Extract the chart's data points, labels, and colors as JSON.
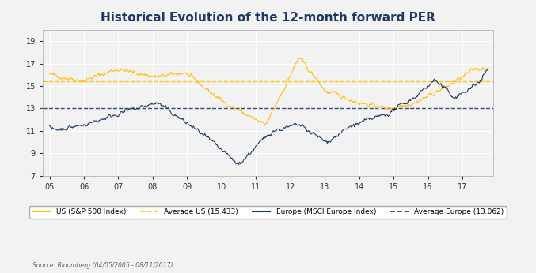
{
  "title": "Historical Evolution of the 12-month forward PER",
  "title_color": "#1F3864",
  "title_fontsize": 11,
  "us_color": "#FFC000",
  "europe_color": "#1F3864",
  "avg_us_color": "#FFC000",
  "avg_europe_color": "#1F3864",
  "avg_us_value": 15.433,
  "avg_europe_value": 13.062,
  "ylim": [
    7,
    20
  ],
  "yticks": [
    7,
    9,
    11,
    13,
    15,
    17,
    19
  ],
  "xtick_labels": [
    "05",
    "06",
    "07",
    "08",
    "09",
    "10",
    "11",
    "12",
    "13",
    "14",
    "15",
    "16",
    "17"
  ],
  "source_text": "Source: Bloomberg (04/05/2005 - 08/11/2017)",
  "legend_labels": [
    "US (S&P 500 Index)",
    "Average US (15.433)",
    "Europe (MSCI Europe Index)",
    "Average Europe (13.062)"
  ],
  "background_color": "#F2F2F2",
  "grid_color": "#FFFFFF",
  "n_points": 650
}
